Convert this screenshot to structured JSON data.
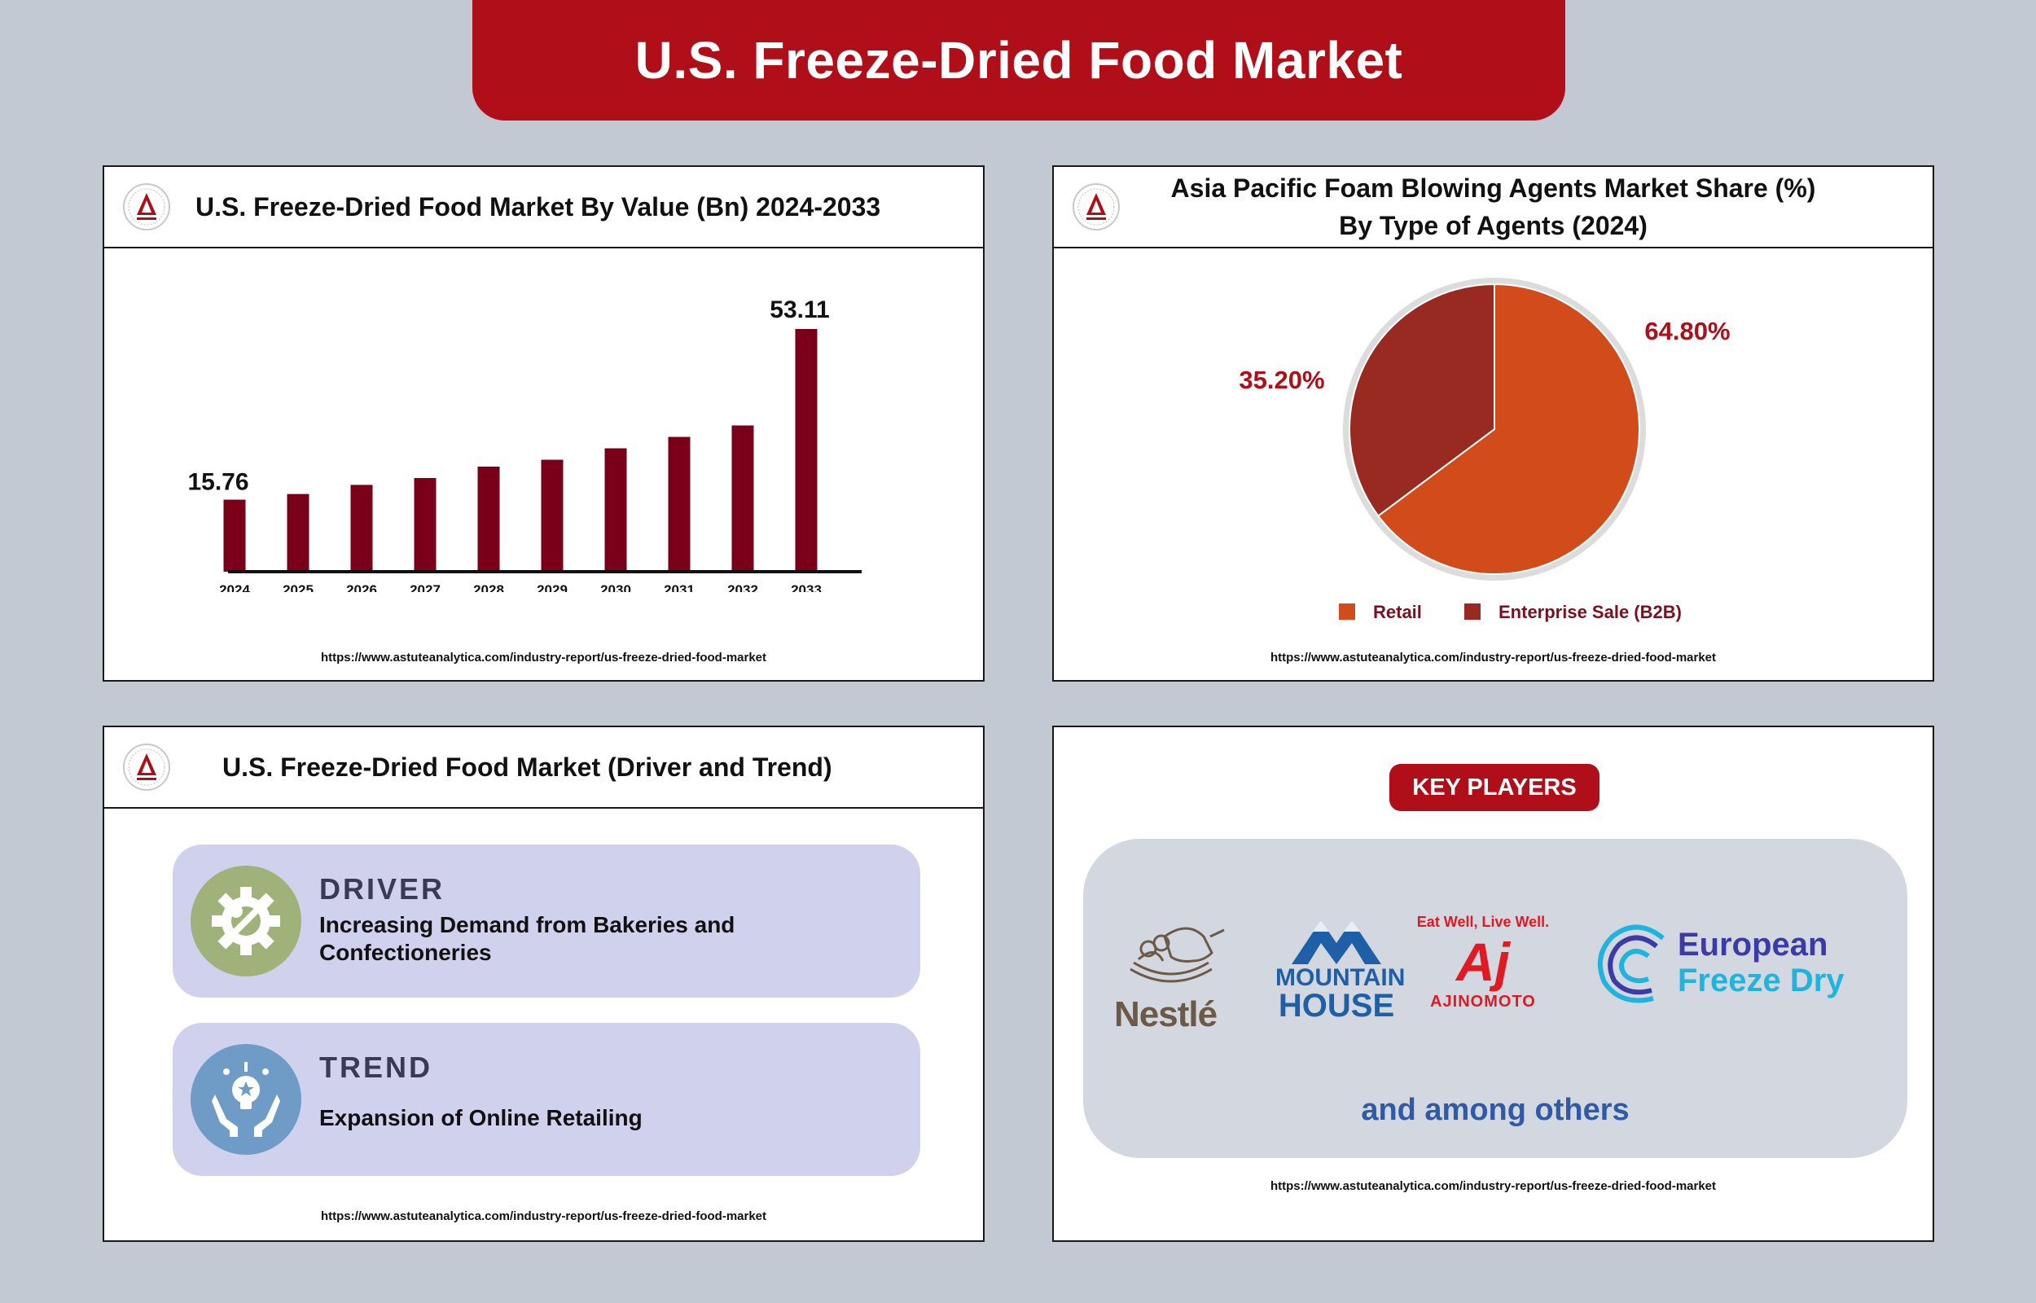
{
  "page_title": "U.S. Freeze-Dried Food Market",
  "source_url": "https://www.astuteanalytica.com/industry-report/us-freeze-dried-food-market",
  "logo": {
    "icon": "astute-analytica-logo-icon",
    "text": "ASTUTE ANALYTICA"
  },
  "colors": {
    "brand_red": "#b00e18",
    "bar": "#7a0019",
    "retail": "#d24b1a",
    "enterprise": "#982a21",
    "driver_icon_bg": "#9fb27a",
    "trend_icon_bg": "#6e9cc7"
  },
  "bar_panel": {
    "title": "U.S. Freeze-Dried Food Market By Value (Bn) 2024-2033"
  },
  "pie_panel": {
    "title_line1": "Asia Pacific Foam Blowing Agents Market Share (%)",
    "title_line2": "By Type of Agents (2024)"
  },
  "chart_data": [
    {
      "type": "bar",
      "title": "U.S. Freeze-Dried Food Market By Value (Bn) 2024-2033",
      "categories": [
        "2024",
        "2025",
        "2026",
        "2027",
        "2028",
        "2029",
        "2030",
        "2031",
        "2032",
        "2033"
      ],
      "values": [
        15.76,
        17.0,
        19.0,
        20.5,
        23.0,
        24.5,
        27.0,
        29.5,
        32.0,
        53.11
      ],
      "value_labels": {
        "first": "15.76",
        "last": "53.11"
      },
      "ylim": [
        0,
        60
      ],
      "grid": false
    },
    {
      "type": "pie",
      "title": "Asia Pacific Foam Blowing Agents Market Share (%) By Type of Agents (2024)",
      "slices": [
        {
          "label": "Retail",
          "value": 64.8,
          "display": "64.80%",
          "color": "#d24b1a"
        },
        {
          "label": "Enterprise Sale (B2B)",
          "value": 35.2,
          "display": "35.20%",
          "color": "#982a21"
        }
      ],
      "legend_position": "bottom"
    }
  ],
  "driver_trend": {
    "title": "U.S. Freeze-Dried Food Market (Driver and Trend)",
    "driver": {
      "heading": "DRIVER",
      "text": "Increasing Demand from Bakeries and Confectioneries",
      "icon": "gear-wrench-icon"
    },
    "trend": {
      "heading": "TREND",
      "text": "Expansion of Online Retailing",
      "icon": "hands-lightbulb-icon"
    }
  },
  "key_players": {
    "badge": "KEY PLAYERS",
    "players": [
      {
        "name": "Nestlé",
        "logo_text": "Nestlé",
        "icon": "nestle-nest-logo"
      },
      {
        "name": "Mountain House",
        "logo_line1": "MOUNTAIN",
        "logo_line2": "HOUSE",
        "icon": "mountain-logo"
      },
      {
        "name": "Ajinomoto",
        "tagline": "Eat Well, Live Well.",
        "mark": "Aj",
        "logo_text": "AJINOMOTO",
        "icon": "ajinomoto-logo"
      },
      {
        "name": "European Freeze Dry",
        "logo_line1": "European",
        "logo_line2": "Freeze Dry",
        "icon": "european-freeze-dry-logo"
      }
    ],
    "others": "and among others"
  }
}
